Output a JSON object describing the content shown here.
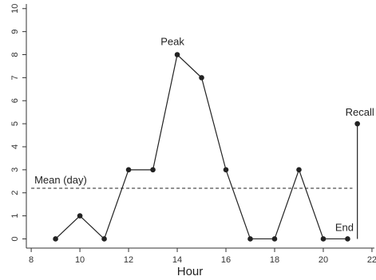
{
  "chart_data": {
    "type": "line",
    "xlabel": "Hour",
    "x": [
      9,
      10,
      11,
      12,
      13,
      14,
      15,
      16,
      17,
      18,
      19,
      20,
      21
    ],
    "series": [
      {
        "color": "#222222",
        "values": [
          0,
          1,
          0,
          3,
          3,
          8,
          7,
          3,
          0,
          0,
          3,
          0,
          0
        ]
      }
    ],
    "peak_label": "Peak",
    "end_label": "End",
    "recall": {
      "label": "Recall",
      "x": 21.4,
      "value": 5
    },
    "mean": {
      "label": "Mean (day)",
      "value": 2.2
    },
    "xlim": [
      7.8,
      22.1
    ],
    "xticks": [
      8,
      10,
      12,
      14,
      16,
      18,
      20,
      22
    ],
    "ylim": [
      -0.4,
      10.2
    ],
    "yticks": [
      0,
      1,
      2,
      3,
      4,
      5,
      6,
      7,
      8,
      9,
      10
    ],
    "grid": false
  }
}
